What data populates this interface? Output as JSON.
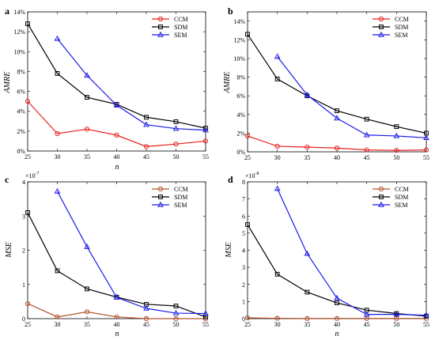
{
  "chart_data": [
    {
      "panel": "a",
      "type": "line",
      "x": [
        25,
        30,
        35,
        40,
        45,
        50,
        55
      ],
      "xlabel": "n",
      "ylabel": "AMRE",
      "xlim": [
        25,
        55
      ],
      "ylim": [
        0,
        14
      ],
      "xticks": [
        "25",
        "30",
        "35",
        "40",
        "45",
        "50",
        "55"
      ],
      "yticks": [
        0,
        2,
        4,
        6,
        8,
        10,
        12,
        14
      ],
      "ytick_labels": [
        "0%",
        "2%",
        "4%",
        "6%",
        "8%",
        "10%",
        "12%",
        "14%"
      ],
      "exponent": "",
      "legend_position": "top-right",
      "series": [
        {
          "name": "CCM",
          "color": "#e8201c",
          "marker": "circle",
          "values": [
            5.0,
            1.75,
            2.2,
            1.6,
            0.45,
            0.7,
            1.0
          ]
        },
        {
          "name": "SDM",
          "color": "#000000",
          "marker": "square",
          "values": [
            12.8,
            7.8,
            5.4,
            4.7,
            3.4,
            2.95,
            2.3
          ]
        },
        {
          "name": "SEM",
          "color": "#1c1ce8",
          "marker": "triangle",
          "values": [
            null,
            11.3,
            7.6,
            4.6,
            2.65,
            2.25,
            2.1
          ]
        }
      ]
    },
    {
      "panel": "b",
      "type": "line",
      "x": [
        25,
        30,
        35,
        40,
        45,
        50,
        55
      ],
      "xlabel": "",
      "ylabel": "AMRE",
      "xlim": [
        25,
        55
      ],
      "ylim": [
        0,
        15
      ],
      "xticks": [
        "25",
        "30",
        "35",
        "40",
        "45",
        "50",
        "55"
      ],
      "yticks": [
        0,
        2,
        4,
        6,
        8,
        10,
        12,
        14
      ],
      "ytick_labels": [
        "0%",
        "2%",
        "4%",
        "6%",
        "8%",
        "10%",
        "12%",
        "14%"
      ],
      "exponent": "",
      "legend_position": "top-right",
      "series": [
        {
          "name": "CCM",
          "color": "#e8201c",
          "marker": "circle",
          "values": [
            1.7,
            0.6,
            0.5,
            0.4,
            0.2,
            0.15,
            0.2
          ]
        },
        {
          "name": "SDM",
          "color": "#000000",
          "marker": "square",
          "values": [
            12.6,
            7.8,
            6.0,
            4.4,
            3.5,
            2.7,
            2.0
          ]
        },
        {
          "name": "SEM",
          "color": "#1c1ce8",
          "marker": "triangle",
          "values": [
            null,
            10.2,
            6.1,
            3.6,
            1.8,
            1.7,
            1.5
          ]
        }
      ]
    },
    {
      "panel": "c",
      "type": "line",
      "x": [
        25,
        30,
        35,
        40,
        45,
        50,
        55
      ],
      "xlabel": "n",
      "ylabel": "MSE",
      "xlim": [
        25,
        55
      ],
      "ylim": [
        0,
        4
      ],
      "xticks": [
        "25",
        "30",
        "35",
        "40",
        "45",
        "50",
        "55"
      ],
      "yticks": [
        0,
        1,
        2,
        3,
        4
      ],
      "ytick_labels": [
        "0",
        "1",
        "2",
        "3",
        "4"
      ],
      "exponent": "-7",
      "legend_position": "top-right",
      "series": [
        {
          "name": "CCM",
          "color": "#b5532d",
          "marker": "circle",
          "values": [
            0.44,
            0.05,
            0.2,
            0.05,
            0.0,
            0.0,
            0.0
          ]
        },
        {
          "name": "SDM",
          "color": "#000000",
          "marker": "square",
          "values": [
            3.1,
            1.4,
            0.87,
            0.63,
            0.42,
            0.37,
            0.05
          ]
        },
        {
          "name": "SEM",
          "color": "#1c1ce8",
          "marker": "triangle",
          "values": [
            null,
            3.72,
            2.1,
            0.62,
            0.3,
            0.16,
            0.15
          ]
        }
      ]
    },
    {
      "panel": "d",
      "type": "line",
      "x": [
        25,
        30,
        35,
        40,
        45,
        50,
        55
      ],
      "xlabel": "n",
      "ylabel": "MSE",
      "xlim": [
        25,
        55
      ],
      "ylim": [
        0,
        8
      ],
      "xticks": [
        "25",
        "30",
        "35",
        "40",
        "45",
        "50",
        "55"
      ],
      "yticks": [
        0,
        1,
        2,
        3,
        4,
        5,
        6,
        7,
        8
      ],
      "ytick_labels": [
        "0",
        "1",
        "2",
        "3",
        "4",
        "5",
        "6",
        "7",
        "8"
      ],
      "exponent": "-8",
      "legend_position": "top-right",
      "series": [
        {
          "name": "CCM",
          "color": "#b5532d",
          "marker": "circle",
          "values": [
            0.05,
            0.02,
            0.01,
            0.01,
            0.01,
            0.01,
            0.01
          ]
        },
        {
          "name": "SDM",
          "color": "#000000",
          "marker": "square",
          "values": [
            5.5,
            2.6,
            1.55,
            0.92,
            0.5,
            0.3,
            0.15
          ]
        },
        {
          "name": "SEM",
          "color": "#1c1ce8",
          "marker": "triangle",
          "values": [
            null,
            7.6,
            3.8,
            1.2,
            0.25,
            0.25,
            0.2
          ]
        }
      ]
    }
  ]
}
